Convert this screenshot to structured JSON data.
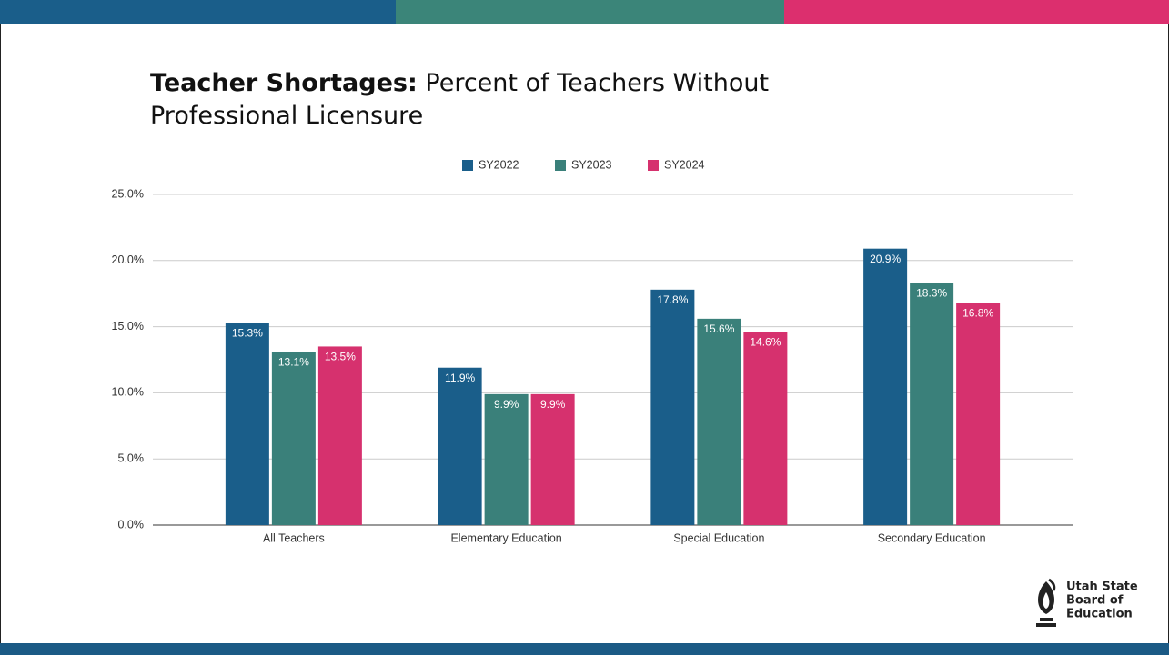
{
  "title_prefix": "Teacher Shortages:",
  "chart_data": {
    "type": "bar",
    "title": "Percent of Teachers Without Professional Licensure",
    "categories": [
      "All Teachers",
      "Elementary Education",
      "Special Education",
      "Secondary Education"
    ],
    "series": [
      {
        "name": "SY2022",
        "color": "#1a5e8a",
        "values": [
          15.3,
          11.9,
          17.8,
          20.9
        ],
        "value_labels": [
          "15.3%",
          "11.9%",
          "17.8%",
          "20.9%"
        ]
      },
      {
        "name": "SY2023",
        "color": "#3a807a",
        "values": [
          13.1,
          9.9,
          15.6,
          18.3
        ],
        "value_labels": [
          "13.1%",
          "9.9%",
          "15.6%",
          "18.3%"
        ]
      },
      {
        "name": "SY2024",
        "color": "#d6316e",
        "values": [
          13.5,
          9.9,
          14.6,
          16.8
        ],
        "value_labels": [
          "13.5%",
          "9.9%",
          "14.6%",
          "16.8%"
        ]
      }
    ],
    "ylim": [
      0,
      25
    ],
    "yticks": [
      {
        "value": 0,
        "label": "0.0%"
      },
      {
        "value": 5,
        "label": "5.0%"
      },
      {
        "value": 10,
        "label": "10.0%"
      },
      {
        "value": 15,
        "label": "15.0%"
      },
      {
        "value": 20,
        "label": "20.0%"
      },
      {
        "value": 25,
        "label": "25.0%"
      }
    ],
    "grid": true,
    "legend": "top"
  },
  "logo": [
    "Utah State",
    "Board of",
    "Education"
  ]
}
